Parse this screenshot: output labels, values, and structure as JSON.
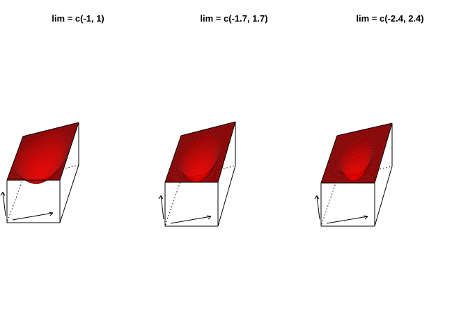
{
  "chart_data": [
    {
      "type": "surface-3d",
      "title": "lim = c(-1, 1)",
      "xlim": [
        -1,
        1
      ],
      "ylim": [
        -1,
        1
      ],
      "zlim": [
        -1,
        1
      ],
      "surface_color": "#ff0000",
      "box": true
    },
    {
      "type": "surface-3d",
      "title": "lim = c(-1.7, 1.7)",
      "xlim": [
        -1.7,
        1.7
      ],
      "ylim": [
        -1.7,
        1.7
      ],
      "zlim": [
        -1.7,
        1.7
      ],
      "surface_color": "#ff0000",
      "box": true
    },
    {
      "type": "surface-3d",
      "title": "lim = c(-2.4, 2.4)",
      "xlim": [
        -2.4,
        2.4
      ],
      "ylim": [
        -2.4,
        2.4
      ],
      "zlim": [
        -2.4,
        2.4
      ],
      "surface_color": "#ff0000",
      "box": true
    }
  ]
}
